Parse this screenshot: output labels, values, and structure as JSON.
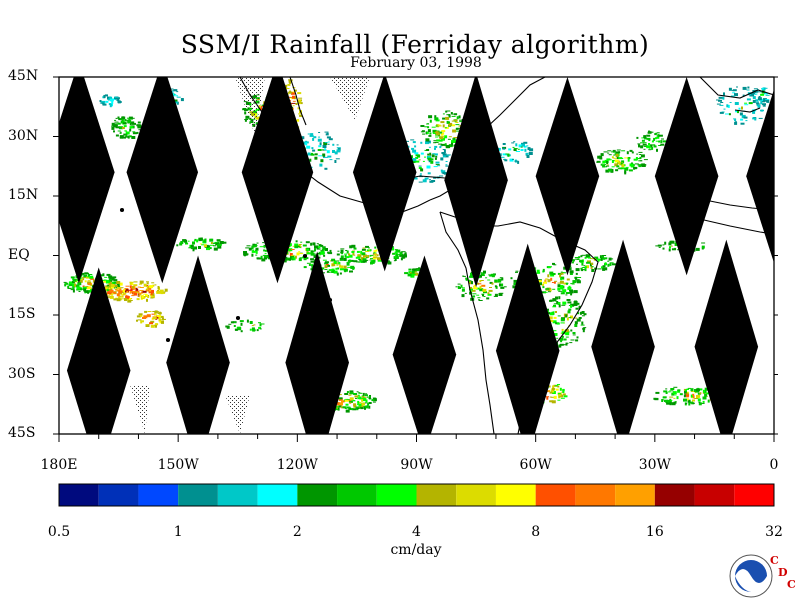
{
  "title": "SSM/I Rainfall (Ferriday algorithm)",
  "subtitle": "February 03, 1998",
  "lat_labels": [
    {
      "label": "45N",
      "lat": 45
    },
    {
      "label": "30N",
      "lat": 30
    },
    {
      "label": "15N",
      "lat": 15
    },
    {
      "label": "EQ",
      "lat": 0
    },
    {
      "label": "15S",
      "lat": -15
    },
    {
      "label": "30S",
      "lat": -30
    },
    {
      "label": "45S",
      "lat": -45
    }
  ],
  "lon_labels": [
    {
      "label": "180E",
      "lon": -180
    },
    {
      "label": "150W",
      "lon": -150
    },
    {
      "label": "120W",
      "lon": -120
    },
    {
      "label": "90W",
      "lon": -90
    },
    {
      "label": "60W",
      "lon": -60
    },
    {
      "label": "30W",
      "lon": -30
    },
    {
      "label": "0",
      "lon": 0
    }
  ],
  "colorbar": {
    "colors": [
      "#000a7e",
      "#0030b8",
      "#0048ff",
      "#009090",
      "#00c8c8",
      "#00ffff",
      "#009600",
      "#00c800",
      "#00ff00",
      "#b4b400",
      "#dcdc00",
      "#ffff00",
      "#ff5000",
      "#ff7800",
      "#ffa000",
      "#960000",
      "#c80000",
      "#ff0000"
    ],
    "tick_labels": [
      "0.5",
      "1",
      "2",
      "4",
      "8",
      "16",
      "32"
    ],
    "units": "cm/day"
  },
  "logo": {
    "icon": "noaa-logo-icon",
    "letters": [
      "C",
      "D",
      "C"
    ]
  }
}
